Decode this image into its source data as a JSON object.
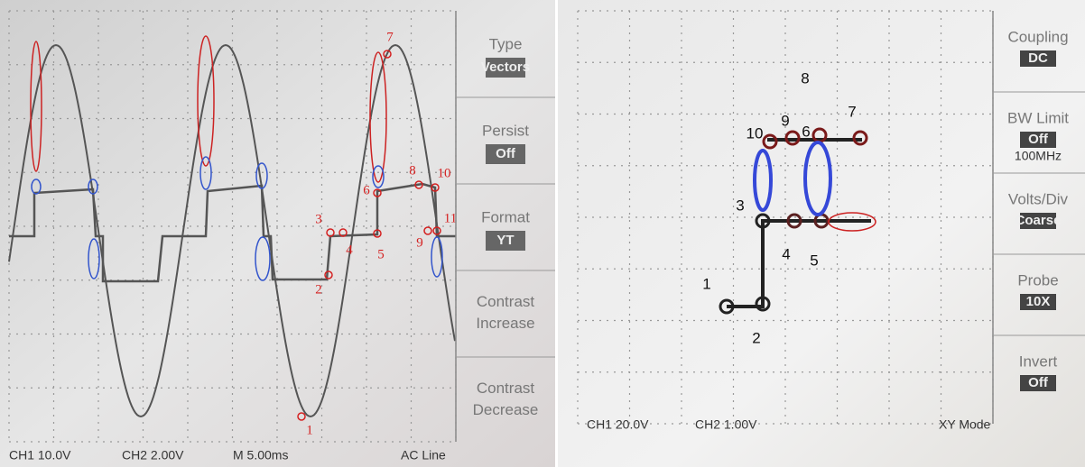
{
  "left_screen": {
    "menu": [
      {
        "label": "Type",
        "value": "Vectors"
      },
      {
        "label": "Persist",
        "value": "Off"
      },
      {
        "label": "Format",
        "value": "YT"
      },
      {
        "label": "Contrast Increase"
      },
      {
        "label": "Contrast Decrease"
      }
    ],
    "status": [
      "CH1 10.0V",
      "CH2 2.00V",
      "M 5.00ms",
      "AC Line"
    ],
    "markers": [
      "1",
      "2",
      "3",
      "4",
      "5",
      "6",
      "7",
      "8",
      "9",
      "10",
      "11"
    ]
  },
  "right_screen": {
    "menu": [
      {
        "label": "Coupling",
        "value": "DC"
      },
      {
        "label": "BW Limit",
        "value": "Off",
        "note": "100MHz"
      },
      {
        "label": "Volts/Div",
        "value": "Coarse"
      },
      {
        "label": "Probe",
        "value": "10X"
      },
      {
        "label": "Invert",
        "value": "Off"
      }
    ],
    "status": [
      "CH1 20.0V",
      "CH2 1.00V",
      "XY Mode"
    ],
    "markers": [
      "1",
      "2",
      "3",
      "4",
      "5",
      "6",
      "7",
      "8",
      "9",
      "10"
    ]
  }
}
